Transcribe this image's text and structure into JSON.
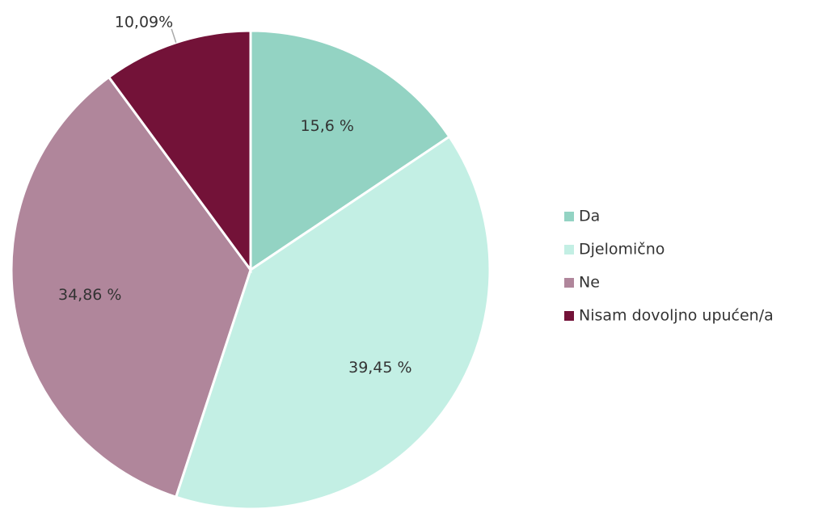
{
  "chart_data": {
    "type": "pie",
    "categories": [
      "Da",
      "Djelomično",
      "Ne",
      "Nisam dovoljno upućen/a"
    ],
    "values": [
      15.6,
      39.45,
      34.86,
      10.09
    ],
    "value_labels": [
      "15,6 %",
      "39,45 %",
      "34,86 %",
      "10,09%"
    ],
    "colors": [
      "#93d3c3",
      "#c3efe4",
      "#b0869b",
      "#731238"
    ],
    "legend": "right"
  }
}
